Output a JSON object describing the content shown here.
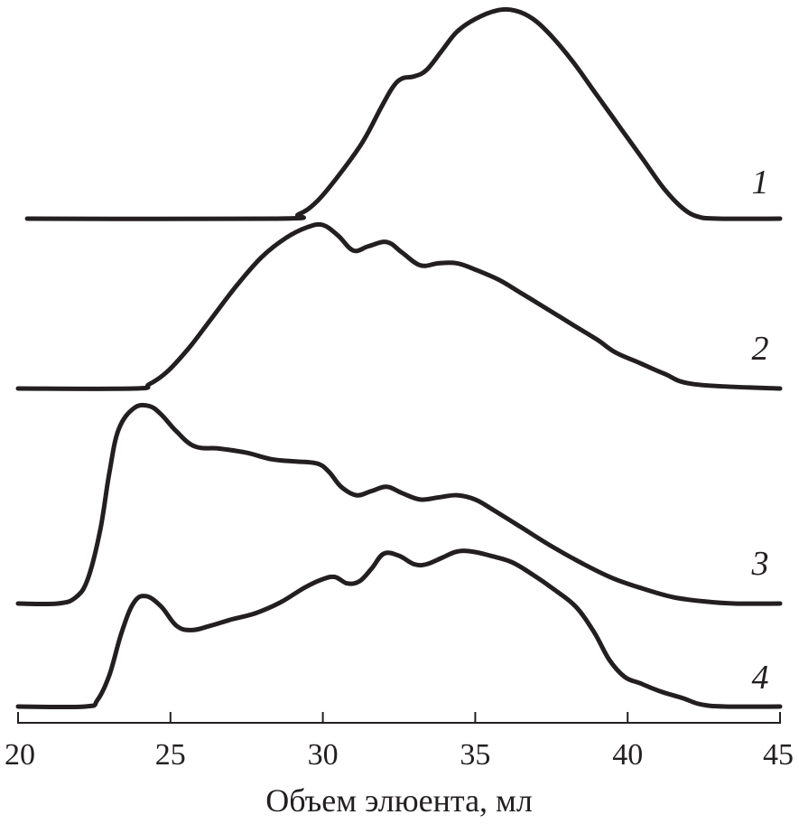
{
  "chart_data": {
    "type": "line",
    "xlabel": "Объем элюента, мл",
    "ylabel": "",
    "xlim": [
      20,
      45
    ],
    "x_ticks": [
      "20",
      "25",
      "30",
      "35",
      "40",
      "45"
    ],
    "y_axis_shown": false,
    "grid": false,
    "stacked_offsets": true,
    "series": [
      {
        "name": "1",
        "x": [
          20.3,
          28.5,
          29.2,
          29.8,
          30.5,
          31.3,
          31.9,
          32.3,
          32.6,
          33.0,
          33.4,
          33.9,
          34.4,
          35.0,
          35.7,
          36.3,
          36.9,
          37.5,
          38.2,
          39.0,
          39.8,
          40.5,
          41.2,
          41.8,
          42.3,
          43.0,
          45.0
        ],
        "y": [
          0,
          0,
          0.02,
          0.08,
          0.2,
          0.36,
          0.52,
          0.62,
          0.66,
          0.67,
          0.7,
          0.79,
          0.88,
          0.94,
          0.98,
          0.98,
          0.94,
          0.86,
          0.74,
          0.58,
          0.42,
          0.28,
          0.14,
          0.05,
          0.01,
          0,
          0
        ]
      },
      {
        "name": "2",
        "x": [
          20.0,
          23.8,
          24.3,
          24.9,
          25.6,
          26.4,
          27.2,
          28.0,
          28.8,
          29.5,
          30.0,
          30.5,
          31.0,
          31.5,
          32.1,
          32.6,
          33.2,
          33.8,
          34.4,
          35.0,
          35.8,
          36.5,
          37.3,
          38.2,
          39.0,
          39.6,
          40.4,
          41.2,
          42.2,
          45.0
        ],
        "y": [
          0,
          0,
          0.02,
          0.08,
          0.19,
          0.34,
          0.49,
          0.62,
          0.71,
          0.76,
          0.77,
          0.72,
          0.65,
          0.67,
          0.69,
          0.64,
          0.58,
          0.59,
          0.59,
          0.56,
          0.51,
          0.45,
          0.38,
          0.3,
          0.23,
          0.17,
          0.12,
          0.07,
          0.02,
          0
        ]
      },
      {
        "name": "3",
        "x": [
          20.0,
          21.3,
          21.9,
          22.3,
          22.7,
          23.0,
          23.3,
          23.8,
          24.3,
          24.7,
          25.2,
          25.8,
          26.6,
          27.5,
          28.3,
          29.0,
          29.8,
          30.2,
          30.6,
          31.1,
          31.6,
          32.1,
          32.6,
          33.2,
          33.8,
          34.4,
          35.0,
          35.6,
          36.5,
          37.5,
          38.5,
          39.5,
          40.5,
          41.5,
          42.5,
          43.5,
          45.0
        ],
        "y": [
          0,
          0,
          0.03,
          0.12,
          0.35,
          0.62,
          0.82,
          0.92,
          0.93,
          0.89,
          0.81,
          0.74,
          0.73,
          0.71,
          0.68,
          0.67,
          0.66,
          0.62,
          0.55,
          0.51,
          0.53,
          0.55,
          0.52,
          0.49,
          0.5,
          0.51,
          0.49,
          0.44,
          0.36,
          0.27,
          0.19,
          0.12,
          0.07,
          0.03,
          0.01,
          0,
          0
        ]
      },
      {
        "name": "4",
        "x": [
          20.0,
          22.2,
          22.6,
          23.0,
          23.4,
          23.8,
          24.2,
          24.7,
          25.2,
          25.7,
          26.3,
          27.0,
          27.8,
          28.6,
          29.4,
          30.0,
          30.4,
          30.8,
          31.2,
          31.6,
          32.0,
          32.5,
          33.0,
          33.4,
          33.9,
          34.4,
          34.9,
          35.5,
          36.2,
          36.9,
          37.6,
          38.3,
          38.9,
          39.4,
          39.9,
          40.4,
          41.1,
          41.8,
          42.4,
          43.2,
          45.0
        ],
        "y": [
          0,
          0,
          0.03,
          0.15,
          0.35,
          0.49,
          0.52,
          0.47,
          0.38,
          0.36,
          0.38,
          0.41,
          0.44,
          0.49,
          0.56,
          0.6,
          0.61,
          0.58,
          0.59,
          0.65,
          0.72,
          0.71,
          0.67,
          0.67,
          0.7,
          0.73,
          0.73,
          0.71,
          0.68,
          0.62,
          0.55,
          0.47,
          0.35,
          0.22,
          0.14,
          0.11,
          0.07,
          0.04,
          0.01,
          0,
          0
        ]
      }
    ]
  }
}
